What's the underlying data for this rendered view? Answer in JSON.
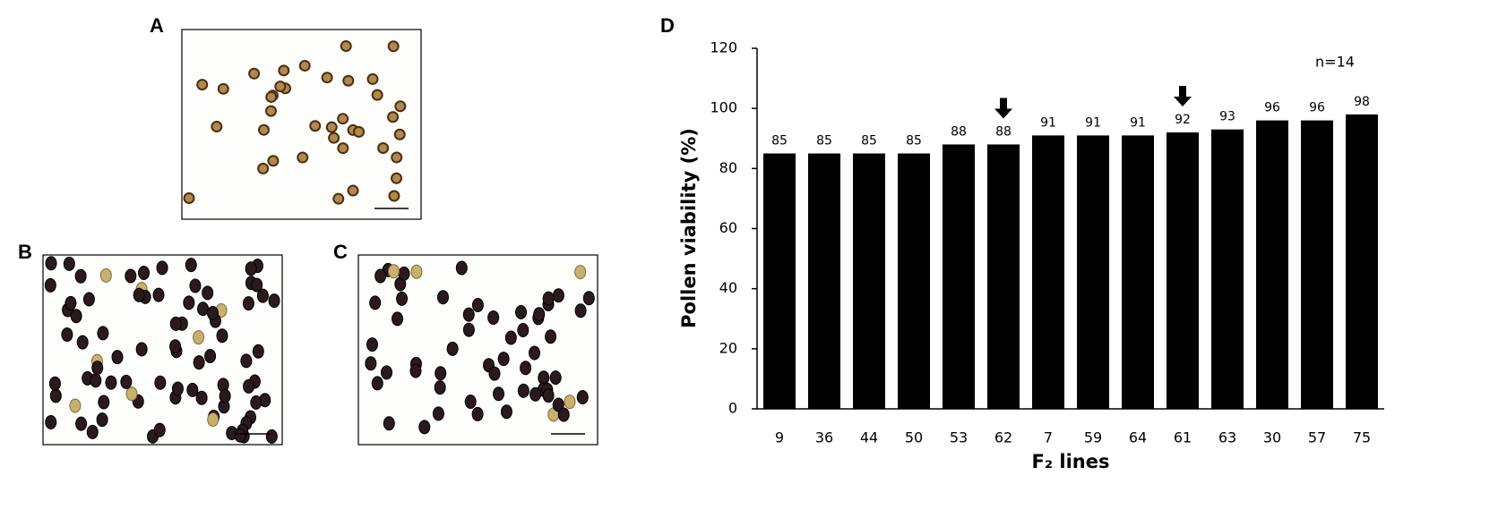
{
  "panels": [
    "A",
    "B",
    "C"
  ],
  "chart_data": {
    "type": "bar",
    "panel_label": "D",
    "y_label": "Pollen viability (%)",
    "x_label": "F₂ lines",
    "annotation": "n=14",
    "categories": [
      "9",
      "36",
      "44",
      "50",
      "53",
      "62",
      "7",
      "59",
      "64",
      "61",
      "63",
      "30",
      "57",
      "75"
    ],
    "values": [
      85,
      85,
      85,
      85,
      88,
      88,
      91,
      91,
      91,
      92,
      93,
      96,
      96,
      98
    ],
    "color": "#000000",
    "arrow_categories": [
      "62",
      "61"
    ],
    "ylim": [
      0,
      120
    ],
    "yticks": [
      0,
      20,
      40,
      60,
      80,
      100,
      120
    ],
    "grid": false
  }
}
